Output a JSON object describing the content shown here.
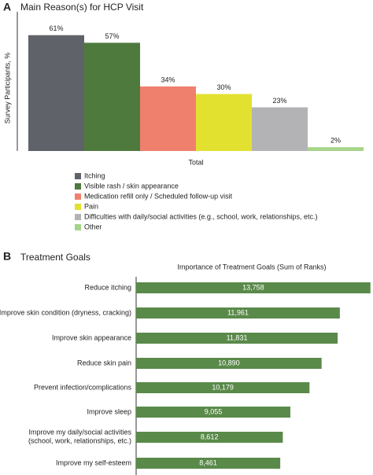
{
  "chart_data": [
    {
      "type": "bar",
      "panel": "A",
      "title": "Main Reason(s) for HCP Visit",
      "y_label": "Survey Participants, %",
      "categories": [
        "Total"
      ],
      "ylim": [
        0,
        70
      ],
      "series": [
        {
          "name": "Itching",
          "color": "#5f6369",
          "values": [
            61
          ],
          "value_labels": [
            "61%"
          ]
        },
        {
          "name": "Visible rash / skin appearance",
          "color": "#4e7a3e",
          "values": [
            57
          ],
          "value_labels": [
            "57%"
          ]
        },
        {
          "name": "Medication refill only / Scheduled follow-up visit",
          "color": "#f0806e",
          "values": [
            34
          ],
          "value_labels": [
            "34%"
          ]
        },
        {
          "name": "Pain",
          "color": "#e2e130",
          "values": [
            30
          ],
          "value_labels": [
            "30%"
          ]
        },
        {
          "name": "Difficulties with daily/social activities (e.g., school, work, relationships, etc.)",
          "color": "#b3b3b5",
          "values": [
            23
          ],
          "value_labels": [
            "23%"
          ]
        },
        {
          "name": "Other",
          "color": "#a6d48a",
          "values": [
            2
          ],
          "value_labels": [
            "2%"
          ]
        }
      ]
    },
    {
      "type": "barh",
      "panel": "B",
      "title": "Treatment Goals",
      "subtitle": "Importance of Treatment Goals (Sum of Ranks)",
      "color": "#5a8a4a",
      "xlim": [
        0,
        14000
      ],
      "categories": [
        "Reduce itching",
        "Improve skin condition (dryness, cracking)",
        "Improve skin appearance",
        "Reduce skin pain",
        "Prevent infection/complications",
        "Improve sleep",
        "Improve my daily/social activities\n(school, work, relationships, etc.)",
        "Improve my self-esteem"
      ],
      "values": [
        13758,
        11961,
        11831,
        10890,
        10179,
        9055,
        8612,
        8461
      ],
      "value_labels": [
        "13,758",
        "11,961",
        "11,831",
        "10,890",
        "10,179",
        "9,055",
        "8,612",
        "8,461"
      ]
    }
  ]
}
